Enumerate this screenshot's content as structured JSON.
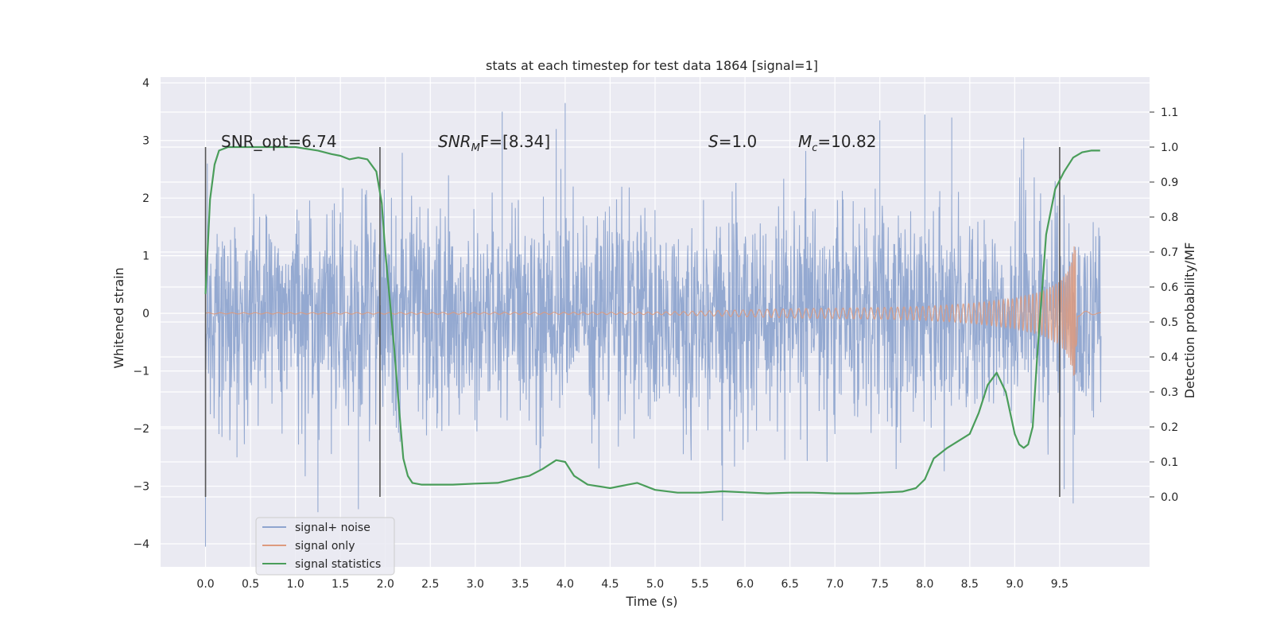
{
  "chart_data": {
    "type": "line",
    "title": "stats at each timestep for test data 1864 [signal=1]",
    "xlabel": "Time (s)",
    "ylabel": "Whitened strain",
    "ylabel_right": "Detection probability/MF",
    "xlim": [
      -0.5,
      10.5
    ],
    "ylim": [
      -4.4,
      4.1
    ],
    "ylim_right": [
      -0.2,
      1.2
    ],
    "x_ticks": [
      "0.0",
      "0.5",
      "1.0",
      "1.5",
      "2.0",
      "2.5",
      "3.0",
      "3.5",
      "4.0",
      "4.5",
      "5.0",
      "5.5",
      "6.0",
      "6.5",
      "7.0",
      "7.5",
      "8.0",
      "8.5",
      "9.0",
      "9.5"
    ],
    "y_ticks": [
      "4",
      "3",
      "2",
      "1",
      "0",
      "−1",
      "−2",
      "−3",
      "−4"
    ],
    "y_ticks_right": [
      "1.1",
      "1.0",
      "0.9",
      "0.8",
      "0.7",
      "0.6",
      "0.5",
      "0.4",
      "0.3",
      "0.2",
      "0.1",
      "0.0"
    ],
    "grid": true,
    "legend_position": "lower-left",
    "annotations": {
      "snr_opt": "SNR_opt=6.74",
      "snr_mf_main": "SNR",
      "snr_mf_sub": "M",
      "snr_mf_rest": "F=[8.34]",
      "s_main": "S",
      "s_rest": "=1.0",
      "mc_main": "M",
      "mc_sub": "c",
      "mc_rest": "=10.82"
    },
    "vertical_markers_x": [
      0.0,
      1.94,
      9.5
    ],
    "colors": {
      "noise": "#8fa5cf",
      "signal": "#dd9a7e",
      "stats": "#4a9d5a",
      "marker": "#555555",
      "background": "#eaeaf2",
      "grid": "#ffffff"
    },
    "series": [
      {
        "name": "signal+ noise",
        "kind": "noise",
        "x_range": [
          0.0,
          9.96
        ],
        "typical_amplitude": 1.5,
        "extrema": [
          [
            0.0,
            -4.05
          ],
          [
            0.02,
            2.6
          ],
          [
            0.35,
            -2.5
          ],
          [
            1.25,
            -3.45
          ],
          [
            1.5,
            1.75
          ],
          [
            1.7,
            -3.4
          ],
          [
            3.3,
            3.5
          ],
          [
            3.9,
            3.2
          ],
          [
            4.0,
            3.65
          ],
          [
            5.75,
            -3.6
          ],
          [
            7.5,
            3.35
          ],
          [
            8.0,
            3.45
          ],
          [
            8.3,
            3.4
          ],
          [
            9.1,
            3.05
          ],
          [
            9.65,
            -3.3
          ],
          [
            9.55,
            -3.05
          ]
        ]
      },
      {
        "name": "signal only",
        "kind": "chirp",
        "x_range": [
          0.0,
          9.96
        ],
        "peak_x": 9.68,
        "peak_value": 1.3,
        "envelope": [
          [
            0.0,
            0.01
          ],
          [
            5.0,
            0.02
          ],
          [
            5.5,
            0.04
          ],
          [
            6.0,
            0.06
          ],
          [
            6.5,
            0.08
          ],
          [
            7.0,
            0.09
          ],
          [
            7.5,
            0.1
          ],
          [
            8.0,
            0.12
          ],
          [
            8.5,
            0.17
          ],
          [
            9.0,
            0.26
          ],
          [
            9.3,
            0.38
          ],
          [
            9.5,
            0.55
          ],
          [
            9.6,
            0.75
          ],
          [
            9.68,
            1.3
          ],
          [
            9.7,
            0.05
          ],
          [
            9.96,
            0.01
          ]
        ]
      },
      {
        "name": "signal statistics",
        "kind": "line",
        "axis": "right",
        "x": [
          0.0,
          0.05,
          0.1,
          0.15,
          0.25,
          0.5,
          0.75,
          1.0,
          1.25,
          1.4,
          1.5,
          1.6,
          1.7,
          1.8,
          1.9,
          1.96,
          2.0,
          2.05,
          2.1,
          2.15,
          2.2,
          2.25,
          2.3,
          2.4,
          2.5,
          2.75,
          3.0,
          3.25,
          3.5,
          3.6,
          3.75,
          3.9,
          4.0,
          4.1,
          4.25,
          4.5,
          4.7,
          4.8,
          5.0,
          5.25,
          5.5,
          5.75,
          6.0,
          6.25,
          6.5,
          6.75,
          7.0,
          7.25,
          7.5,
          7.75,
          7.9,
          8.0,
          8.1,
          8.25,
          8.5,
          8.6,
          8.7,
          8.8,
          8.9,
          9.0,
          9.05,
          9.1,
          9.15,
          9.2,
          9.25,
          9.35,
          9.45,
          9.55,
          9.65,
          9.75,
          9.85,
          9.95
        ],
        "values": [
          0.58,
          0.85,
          0.95,
          0.99,
          1.0,
          1.0,
          1.0,
          1.0,
          0.99,
          0.98,
          0.975,
          0.965,
          0.97,
          0.965,
          0.93,
          0.84,
          0.7,
          0.56,
          0.42,
          0.26,
          0.11,
          0.06,
          0.04,
          0.035,
          0.035,
          0.035,
          0.038,
          0.04,
          0.055,
          0.06,
          0.08,
          0.105,
          0.1,
          0.06,
          0.035,
          0.025,
          0.035,
          0.04,
          0.02,
          0.012,
          0.012,
          0.016,
          0.013,
          0.01,
          0.012,
          0.012,
          0.01,
          0.01,
          0.012,
          0.015,
          0.025,
          0.05,
          0.11,
          0.14,
          0.18,
          0.24,
          0.32,
          0.355,
          0.3,
          0.18,
          0.15,
          0.14,
          0.15,
          0.2,
          0.4,
          0.75,
          0.88,
          0.93,
          0.97,
          0.985,
          0.99,
          0.99
        ]
      }
    ]
  }
}
